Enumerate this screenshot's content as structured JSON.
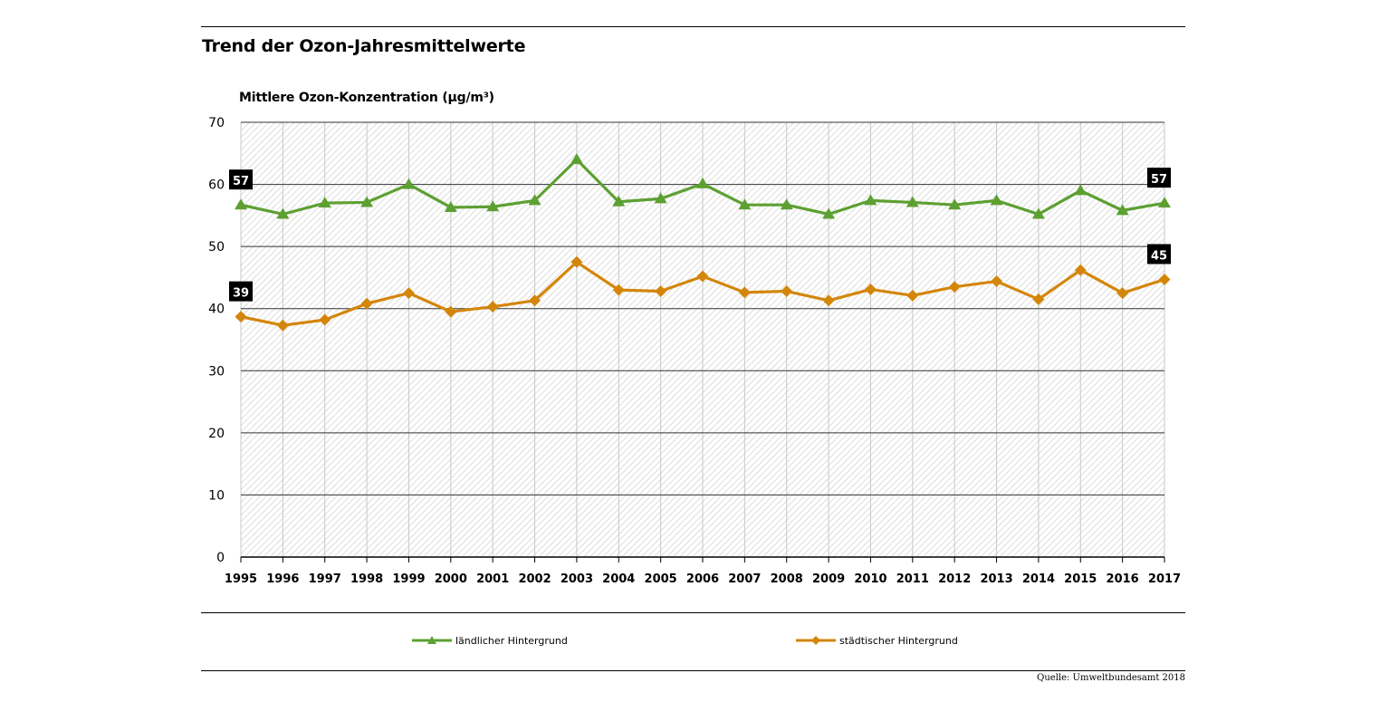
{
  "colors": {
    "rural": "#5da032",
    "urban": "#d4860b",
    "grid": "#000000",
    "label_box": "#000000"
  },
  "chart_data": {
    "type": "line",
    "title": "Trend der Ozon-Jahresmittelwerte",
    "ylabel": "Mittlere Ozon-Konzentration (µg/m³)",
    "xlabel": "",
    "ylim": [
      0,
      70
    ],
    "yticks": [
      0,
      10,
      20,
      30,
      40,
      50,
      60,
      70
    ],
    "grid": "horizontal",
    "legend_position": "bottom",
    "x": [
      "1995",
      "1996",
      "1997",
      "1998",
      "1999",
      "2000",
      "2001",
      "2002",
      "2003",
      "2004",
      "2005",
      "2006",
      "2007",
      "2008",
      "2009",
      "2010",
      "2011",
      "2012",
      "2013",
      "2014",
      "2015",
      "2016",
      "2017"
    ],
    "series": [
      {
        "name": "ländlicher Hintergrund",
        "marker": "triangle",
        "values": [
          56.7,
          55.2,
          57.0,
          57.1,
          60.0,
          56.3,
          56.4,
          57.4,
          64.0,
          57.2,
          57.7,
          60.1,
          56.7,
          56.7,
          55.2,
          57.4,
          57.1,
          56.7,
          57.4,
          55.2,
          59.0,
          55.8,
          57.0
        ],
        "start_label": "57",
        "end_label": "57"
      },
      {
        "name": "städtischer Hintergrund",
        "marker": "diamond",
        "values": [
          38.7,
          37.3,
          38.2,
          40.8,
          42.5,
          39.5,
          40.3,
          41.3,
          47.5,
          43.0,
          42.8,
          45.2,
          42.6,
          42.8,
          41.3,
          43.1,
          42.1,
          43.5,
          44.4,
          41.5,
          46.2,
          42.5,
          44.7
        ],
        "start_label": "39",
        "end_label": "45"
      }
    ]
  },
  "source": "Quelle: Umweltbundesamt 2018"
}
